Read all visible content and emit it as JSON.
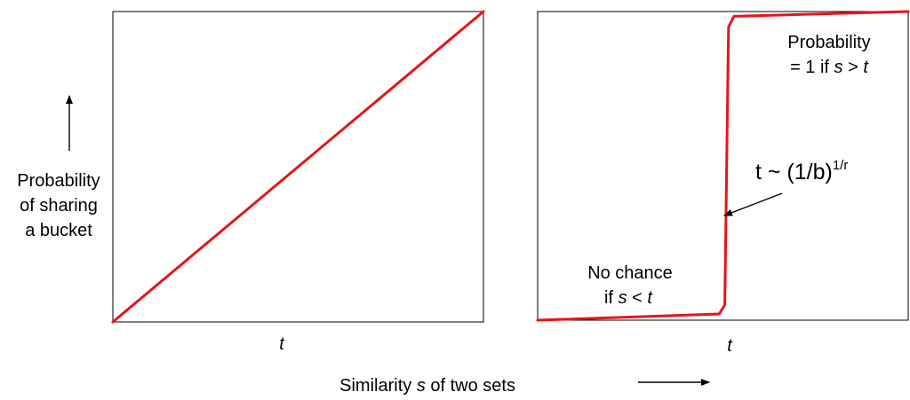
{
  "ylabel_lines": [
    "Probability",
    "of sharing",
    "a bucket"
  ],
  "xlabel_prefix": "Similarity",
  "xlabel_var": "s",
  "xlabel_suffix": "of two sets",
  "colors": {
    "curve": "#e8141a",
    "frame": "#000000"
  },
  "chart_data": [
    {
      "type": "line",
      "xlim": [
        0,
        1
      ],
      "ylim": [
        0,
        1
      ],
      "xtick_label": "t",
      "series": [
        {
          "x": [
            0,
            1
          ],
          "y": [
            0,
            1
          ]
        }
      ]
    },
    {
      "type": "line",
      "xlim": [
        0,
        1
      ],
      "ylim": [
        0,
        1
      ],
      "xtick_label": "t",
      "series": [
        {
          "x": [
            0,
            0.49,
            0.505,
            0.51,
            0.515,
            0.53,
            0.545,
            1
          ],
          "y": [
            0,
            0.02,
            0.05,
            0.5,
            0.95,
            0.985,
            0.985,
            1
          ]
        }
      ],
      "annotations": {
        "top_right": {
          "line1": "Probability",
          "line2_prefix": "= 1 if",
          "var_a": "s",
          "op": ">",
          "var_b": "t"
        },
        "bottom_left": {
          "line1": "No chance",
          "line2_prefix": "if",
          "var_a": "s",
          "op": "<",
          "var_b": "t"
        },
        "threshold": {
          "base": "t ~ (1/b)",
          "sup": "1/r"
        }
      }
    }
  ]
}
